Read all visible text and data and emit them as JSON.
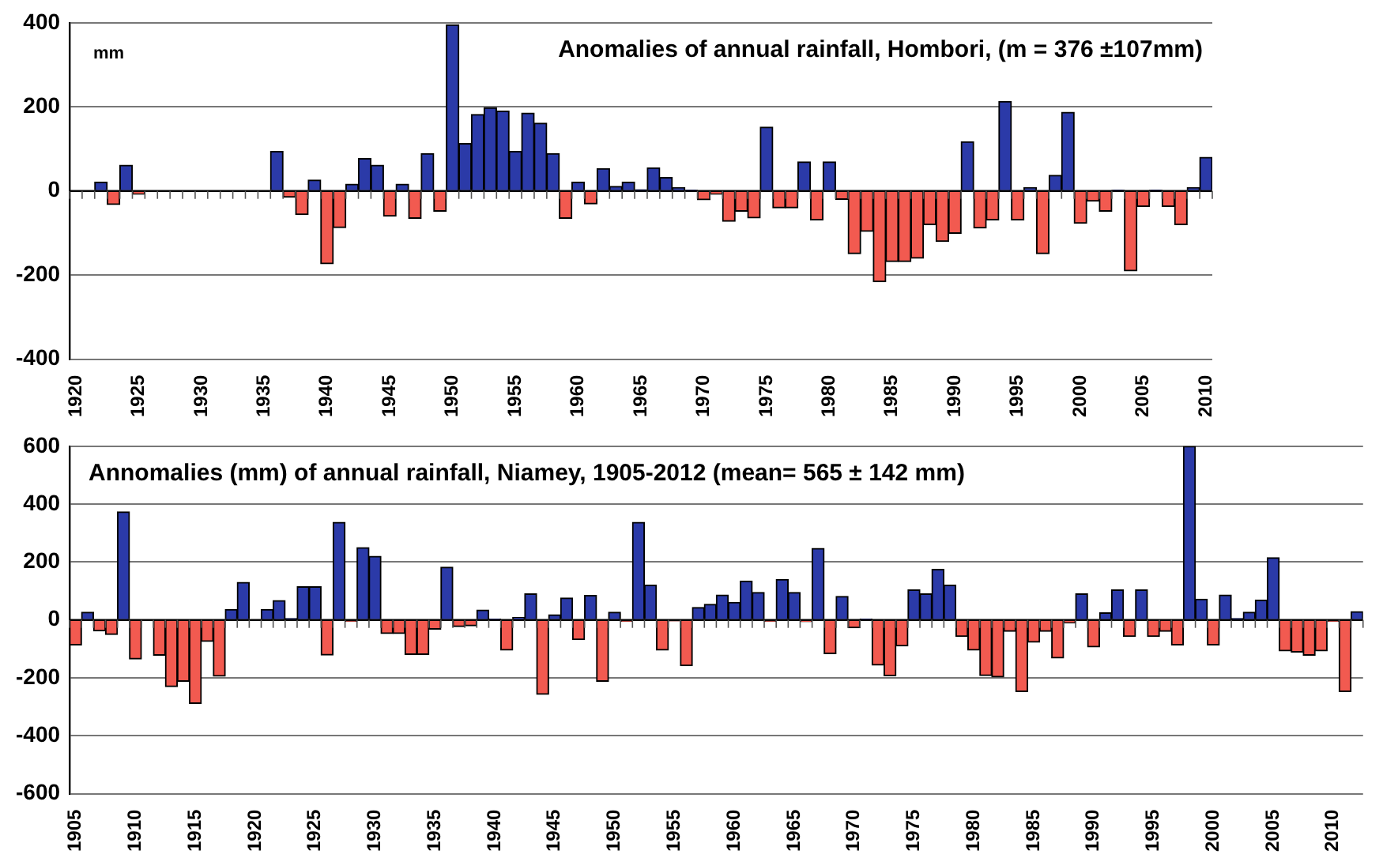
{
  "chart_data": [
    {
      "type": "bar",
      "title": "Anomalies of annual rainfall, Hombori, (m = 376 ±107mm)",
      "ylabel": "mm",
      "categories": [
        "1920",
        null,
        null,
        null,
        null,
        "1925",
        null,
        null,
        null,
        null,
        "1930",
        null,
        null,
        null,
        null,
        "1935",
        null,
        null,
        null,
        null,
        "1940",
        null,
        null,
        null,
        null,
        "1945",
        null,
        null,
        null,
        null,
        "1950",
        null,
        null,
        null,
        null,
        "1955",
        null,
        null,
        null,
        null,
        "1960",
        null,
        null,
        null,
        null,
        "1965",
        null,
        null,
        null,
        null,
        "1970",
        null,
        null,
        null,
        null,
        "1975",
        null,
        null,
        null,
        null,
        "1980",
        null,
        null,
        null,
        null,
        "1985",
        null,
        null,
        null,
        null,
        "1990",
        null,
        null,
        null,
        null,
        "1995",
        null,
        null,
        null,
        null,
        "2000",
        null,
        null,
        null,
        null,
        "2005",
        null,
        null,
        null,
        null,
        "2010"
      ],
      "values": [
        null,
        null,
        21,
        -32,
        61,
        -8,
        null,
        null,
        null,
        null,
        null,
        null,
        null,
        null,
        null,
        null,
        94,
        -15,
        -56,
        26,
        -173,
        -87,
        16,
        77,
        61,
        -60,
        16,
        -65,
        89,
        -48,
        395,
        113,
        182,
        198,
        190,
        94,
        185,
        161,
        89,
        -65,
        21,
        -31,
        53,
        11,
        21,
        3,
        55,
        32,
        8,
        2,
        -21,
        -8,
        -72,
        -48,
        -64,
        152,
        -40,
        -40,
        69,
        -69,
        69,
        -20,
        -149,
        -96,
        -216,
        -168,
        -168,
        -160,
        -80,
        -120,
        -101,
        117,
        -88,
        -69,
        213,
        -69,
        8,
        -149,
        37,
        187,
        -77,
        -24,
        -48,
        2,
        -190,
        -37,
        2,
        -37,
        -80,
        8,
        80
      ],
      "colors": [
        "#2b3aa8",
        "#2b3aa8",
        "#2b3aa8",
        "#f25a50",
        "#2b3aa8",
        "#f25a50",
        "#2b3aa8",
        "#2b3aa8",
        "#2b3aa8",
        "#2b3aa8",
        "#2b3aa8",
        "#2b3aa8",
        "#2b3aa8",
        "#2b3aa8",
        "#2b3aa8",
        "#2b3aa8",
        "#2b3aa8",
        "#f25a50",
        "#f25a50",
        "#2b3aa8",
        "#f25a50",
        "#f25a50",
        "#2b3aa8",
        "#2b3aa8",
        "#2b3aa8",
        "#f25a50",
        "#2b3aa8",
        "#f25a50",
        "#2b3aa8",
        "#f25a50",
        "#2b3aa8",
        "#2b3aa8",
        "#2b3aa8",
        "#2b3aa8",
        "#2b3aa8",
        "#2b3aa8",
        "#2b3aa8",
        "#2b3aa8",
        "#2b3aa8",
        "#f25a50",
        "#2b3aa8",
        "#f25a50",
        "#2b3aa8",
        "#2b3aa8",
        "#2b3aa8",
        "#2b3aa8",
        "#2b3aa8",
        "#2b3aa8",
        "#2b3aa8",
        "#2b3aa8",
        "#f25a50",
        "#f25a50",
        "#f25a50",
        "#f25a50",
        "#f25a50",
        "#2b3aa8",
        "#f25a50",
        "#f25a50",
        "#2b3aa8",
        "#f25a50",
        "#2b3aa8",
        "#f25a50",
        "#f25a50",
        "#f25a50",
        "#f25a50",
        "#f25a50",
        "#f25a50",
        "#f25a50",
        "#f25a50",
        "#f25a50",
        "#f25a50",
        "#2b3aa8",
        "#f25a50",
        "#f25a50",
        "#2b3aa8",
        "#f25a50",
        "#2b3aa8",
        "#f25a50",
        "#2b3aa8",
        "#2b3aa8",
        "#f25a50",
        "#f25a50",
        "#f25a50",
        "#2b3aa8",
        "#f25a50",
        "#f25a50",
        "#2b3aa8",
        "#f25a50",
        "#f25a50",
        "#2b3aa8",
        "#2b3aa8"
      ],
      "ylim": [
        -400,
        400
      ],
      "yticks": [
        -400,
        -200,
        0,
        200,
        400
      ],
      "grid": "y"
    },
    {
      "type": "bar",
      "title": "Annomalies (mm) of annual rainfall, Niamey, 1905-2012 (mean= 565 ± 142 mm)",
      "categories": [
        "1905",
        null,
        null,
        null,
        null,
        "1910",
        null,
        null,
        null,
        null,
        "1915",
        null,
        null,
        null,
        null,
        "1920",
        null,
        null,
        null,
        null,
        "1925",
        null,
        null,
        null,
        null,
        "1930",
        null,
        null,
        null,
        null,
        "1935",
        null,
        null,
        null,
        null,
        "1940",
        null,
        null,
        null,
        null,
        "1945",
        null,
        null,
        null,
        null,
        "1950",
        null,
        null,
        null,
        null,
        "1955",
        null,
        null,
        null,
        null,
        "1960",
        null,
        null,
        null,
        null,
        "1965",
        null,
        null,
        null,
        null,
        "1970",
        null,
        null,
        null,
        null,
        "1975",
        null,
        null,
        null,
        null,
        "1980",
        null,
        null,
        null,
        null,
        "1985",
        null,
        null,
        null,
        null,
        "1990",
        null,
        null,
        null,
        null,
        "1995",
        null,
        null,
        null,
        null,
        "2000",
        null,
        null,
        null,
        null,
        "2005",
        null,
        null,
        null,
        null,
        "2010",
        null,
        null
      ],
      "values": [
        -86,
        27,
        -38,
        -50,
        373,
        -135,
        0,
        -122,
        -230,
        -212,
        -288,
        -74,
        -194,
        36,
        130,
        0,
        36,
        67,
        5,
        115,
        115,
        -121,
        337,
        -5,
        250,
        220,
        -47,
        -47,
        -119,
        -119,
        -32,
        182,
        -23,
        -20,
        34,
        3,
        -104,
        9,
        90,
        -257,
        18,
        76,
        -68,
        85,
        -212,
        27,
        -5,
        337,
        120,
        -104,
        -3,
        -158,
        43,
        54,
        86,
        61,
        134,
        95,
        -5,
        140,
        95,
        -6,
        247,
        -116,
        81,
        -27,
        3,
        -156,
        -193,
        -90,
        104,
        90,
        175,
        120,
        -57,
        -104,
        -192,
        -197,
        -39,
        -247,
        -77,
        -39,
        -131,
        -10,
        90,
        -93,
        25,
        104,
        -57,
        104,
        -57,
        -39,
        -86,
        600,
        72,
        -86,
        86,
        5,
        27,
        68,
        215,
        -107,
        -111,
        -122,
        -107,
        -5,
        -247,
        29
      ],
      "colors": [
        "#f25a50",
        "#2b3aa8",
        "#f25a50",
        "#f25a50",
        "#2b3aa8",
        "#f25a50",
        "#2b3aa8",
        "#f25a50",
        "#f25a50",
        "#f25a50",
        "#f25a50",
        "#f25a50",
        "#f25a50",
        "#2b3aa8",
        "#2b3aa8",
        "#2b3aa8",
        "#2b3aa8",
        "#2b3aa8",
        "#2b3aa8",
        "#2b3aa8",
        "#2b3aa8",
        "#f25a50",
        "#2b3aa8",
        "#f25a50",
        "#2b3aa8",
        "#2b3aa8",
        "#f25a50",
        "#f25a50",
        "#f25a50",
        "#f25a50",
        "#f25a50",
        "#2b3aa8",
        "#f25a50",
        "#f25a50",
        "#2b3aa8",
        "#2b3aa8",
        "#f25a50",
        "#2b3aa8",
        "#2b3aa8",
        "#f25a50",
        "#2b3aa8",
        "#2b3aa8",
        "#f25a50",
        "#2b3aa8",
        "#f25a50",
        "#2b3aa8",
        "#f25a50",
        "#2b3aa8",
        "#2b3aa8",
        "#f25a50",
        "#f25a50",
        "#f25a50",
        "#2b3aa8",
        "#2b3aa8",
        "#2b3aa8",
        "#2b3aa8",
        "#2b3aa8",
        "#2b3aa8",
        "#f25a50",
        "#2b3aa8",
        "#2b3aa8",
        "#f25a50",
        "#2b3aa8",
        "#f25a50",
        "#2b3aa8",
        "#f25a50",
        "#2b3aa8",
        "#f25a50",
        "#f25a50",
        "#f25a50",
        "#2b3aa8",
        "#2b3aa8",
        "#2b3aa8",
        "#2b3aa8",
        "#f25a50",
        "#f25a50",
        "#f25a50",
        "#f25a50",
        "#f25a50",
        "#f25a50",
        "#f25a50",
        "#f25a50",
        "#f25a50",
        "#f25a50",
        "#2b3aa8",
        "#f25a50",
        "#2b3aa8",
        "#2b3aa8",
        "#f25a50",
        "#2b3aa8",
        "#f25a50",
        "#f25a50",
        "#f25a50",
        "#2b3aa8",
        "#2b3aa8",
        "#f25a50",
        "#2b3aa8",
        "#2b3aa8",
        "#2b3aa8",
        "#2b3aa8",
        "#2b3aa8",
        "#f25a50",
        "#f25a50",
        "#f25a50",
        "#f25a50",
        "#f25a50",
        "#f25a50",
        "#2b3aa8"
      ],
      "ylim": [
        -600,
        600
      ],
      "yticks": [
        -600,
        -400,
        -200,
        0,
        200,
        400,
        600
      ],
      "grid": "y"
    }
  ]
}
